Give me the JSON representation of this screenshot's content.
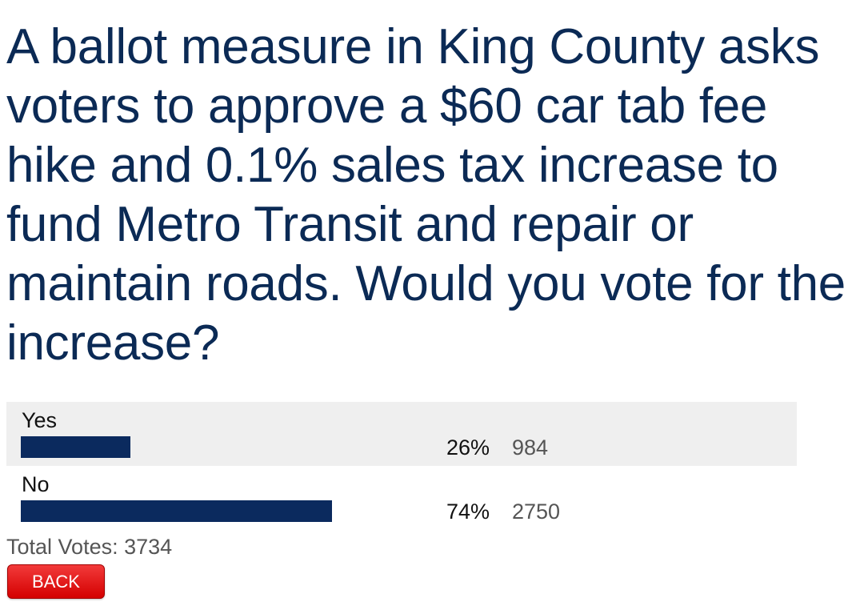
{
  "poll": {
    "question": "A ballot measure in King County asks voters to approve a $60 car tab fee hike and 0.1% sales tax increase to fund Metro Transit and repair or maintain roads. Would you vote for the increase?",
    "answers": [
      {
        "label": "Yes",
        "percent_text": "26%",
        "percent": 26,
        "votes": "984"
      },
      {
        "label": "No",
        "percent_text": "74%",
        "percent": 74,
        "votes": "2750"
      }
    ],
    "total_votes_label": "Total Votes: 3734",
    "back_label": "BACK"
  },
  "colors": {
    "question_text": "#0b2a55",
    "bar": "#0b2a5e",
    "row_shade": "#efefef",
    "back_button": "#d40000"
  }
}
